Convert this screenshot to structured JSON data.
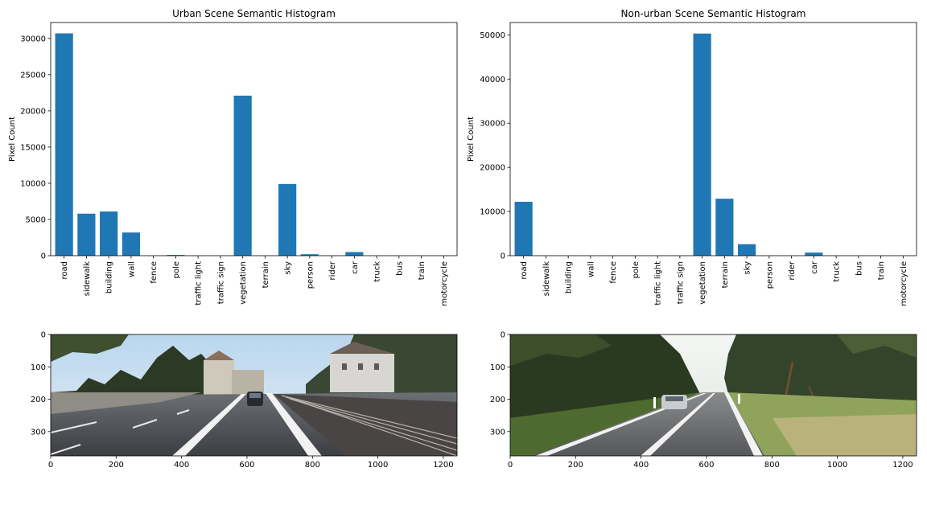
{
  "chart_data": [
    {
      "type": "bar",
      "title": "Urban Scene Semantic Histogram",
      "xlabel": "",
      "ylabel": "Pixel Count",
      "categories": [
        "road",
        "sidewalk",
        "building",
        "wall",
        "fence",
        "pole",
        "traffic light",
        "traffic sign",
        "vegetation",
        "terrain",
        "sky",
        "person",
        "rider",
        "car",
        "truck",
        "bus",
        "train",
        "motorcycle"
      ],
      "values": [
        30700,
        5800,
        6100,
        3200,
        0,
        100,
        0,
        0,
        22100,
        0,
        9900,
        200,
        0,
        500,
        0,
        0,
        0,
        0
      ],
      "ylim": [
        0,
        32200
      ],
      "yticks": [
        0,
        5000,
        10000,
        15000,
        20000,
        25000,
        30000
      ],
      "bar_color": "#1f77b4",
      "grid": false
    },
    {
      "type": "bar",
      "title": "Non-urban Scene Semantic Histogram",
      "xlabel": "",
      "ylabel": "Pixel Count",
      "categories": [
        "road",
        "sidewalk",
        "building",
        "wall",
        "fence",
        "pole",
        "traffic light",
        "traffic sign",
        "vegetation",
        "terrain",
        "sky",
        "person",
        "rider",
        "car",
        "truck",
        "bus",
        "train",
        "motorcycle"
      ],
      "values": [
        12200,
        0,
        0,
        0,
        0,
        0,
        0,
        0,
        50300,
        12900,
        2600,
        0,
        0,
        700,
        0,
        0,
        0,
        0
      ],
      "ylim": [
        0,
        52800
      ],
      "yticks": [
        0,
        10000,
        20000,
        30000,
        40000,
        50000
      ],
      "bar_color": "#1f77b4",
      "grid": false
    }
  ],
  "images": [
    {
      "caption": "urban road scene image",
      "xticks": [
        0,
        200,
        400,
        600,
        800,
        1000,
        1200
      ],
      "yticks": [
        0,
        100,
        200,
        300
      ],
      "xlim": [
        0,
        1242
      ],
      "ylim": [
        375,
        0
      ]
    },
    {
      "caption": "non-urban road scene image",
      "xticks": [
        0,
        200,
        400,
        600,
        800,
        1000,
        1200
      ],
      "yticks": [
        0,
        100,
        200,
        300
      ],
      "xlim": [
        0,
        1242
      ],
      "ylim": [
        375,
        0
      ]
    }
  ]
}
